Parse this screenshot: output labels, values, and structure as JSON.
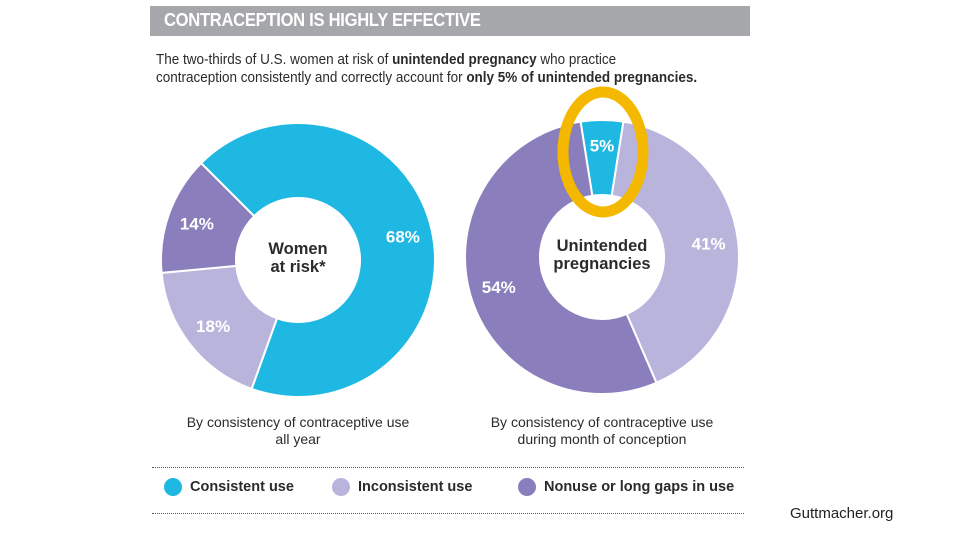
{
  "banner": {
    "title": "CONTRACEPTION IS HIGHLY EFFECTIVE"
  },
  "subtitle": {
    "line1_a": "The two-thirds of U.S. women at risk of ",
    "line1_b": "unintended pregnancy",
    "line1_c": " who practice",
    "line2_a": "contraception consistently and correctly account for ",
    "line2_b": "only 5% of unintended pregnancies."
  },
  "colors": {
    "consistent": "#1fb8e2",
    "inconsistent": "#b9b4dc",
    "nonuse": "#8a7fbc",
    "highlight": "#f5b800"
  },
  "chart_data": [
    {
      "type": "pie",
      "variant": "donut",
      "center_label": [
        "Women",
        "at risk*"
      ],
      "caption": [
        "By consistency of contraceptive use",
        "all year"
      ],
      "categories": [
        "Consistent use",
        "Inconsistent use",
        "Nonuse or long gaps in use"
      ],
      "values": [
        68,
        18,
        14
      ],
      "labels": [
        "68%",
        "18%",
        "14%"
      ]
    },
    {
      "type": "pie",
      "variant": "donut",
      "center_label": [
        "Unintended",
        "pregnancies"
      ],
      "caption": [
        "By consistency of contraceptive use",
        "during month of conception"
      ],
      "categories": [
        "Consistent use",
        "Inconsistent use",
        "Nonuse or long gaps in use"
      ],
      "values": [
        5,
        41,
        54
      ],
      "labels": [
        "5%",
        "41%",
        "54%"
      ],
      "highlighted": "Consistent use"
    }
  ],
  "legend": [
    {
      "label": "Consistent use",
      "key": "consistent"
    },
    {
      "label": "Inconsistent use",
      "key": "inconsistent"
    },
    {
      "label": "Nonuse or long gaps in use",
      "key": "nonuse"
    }
  ],
  "source": "Guttmacher.org"
}
